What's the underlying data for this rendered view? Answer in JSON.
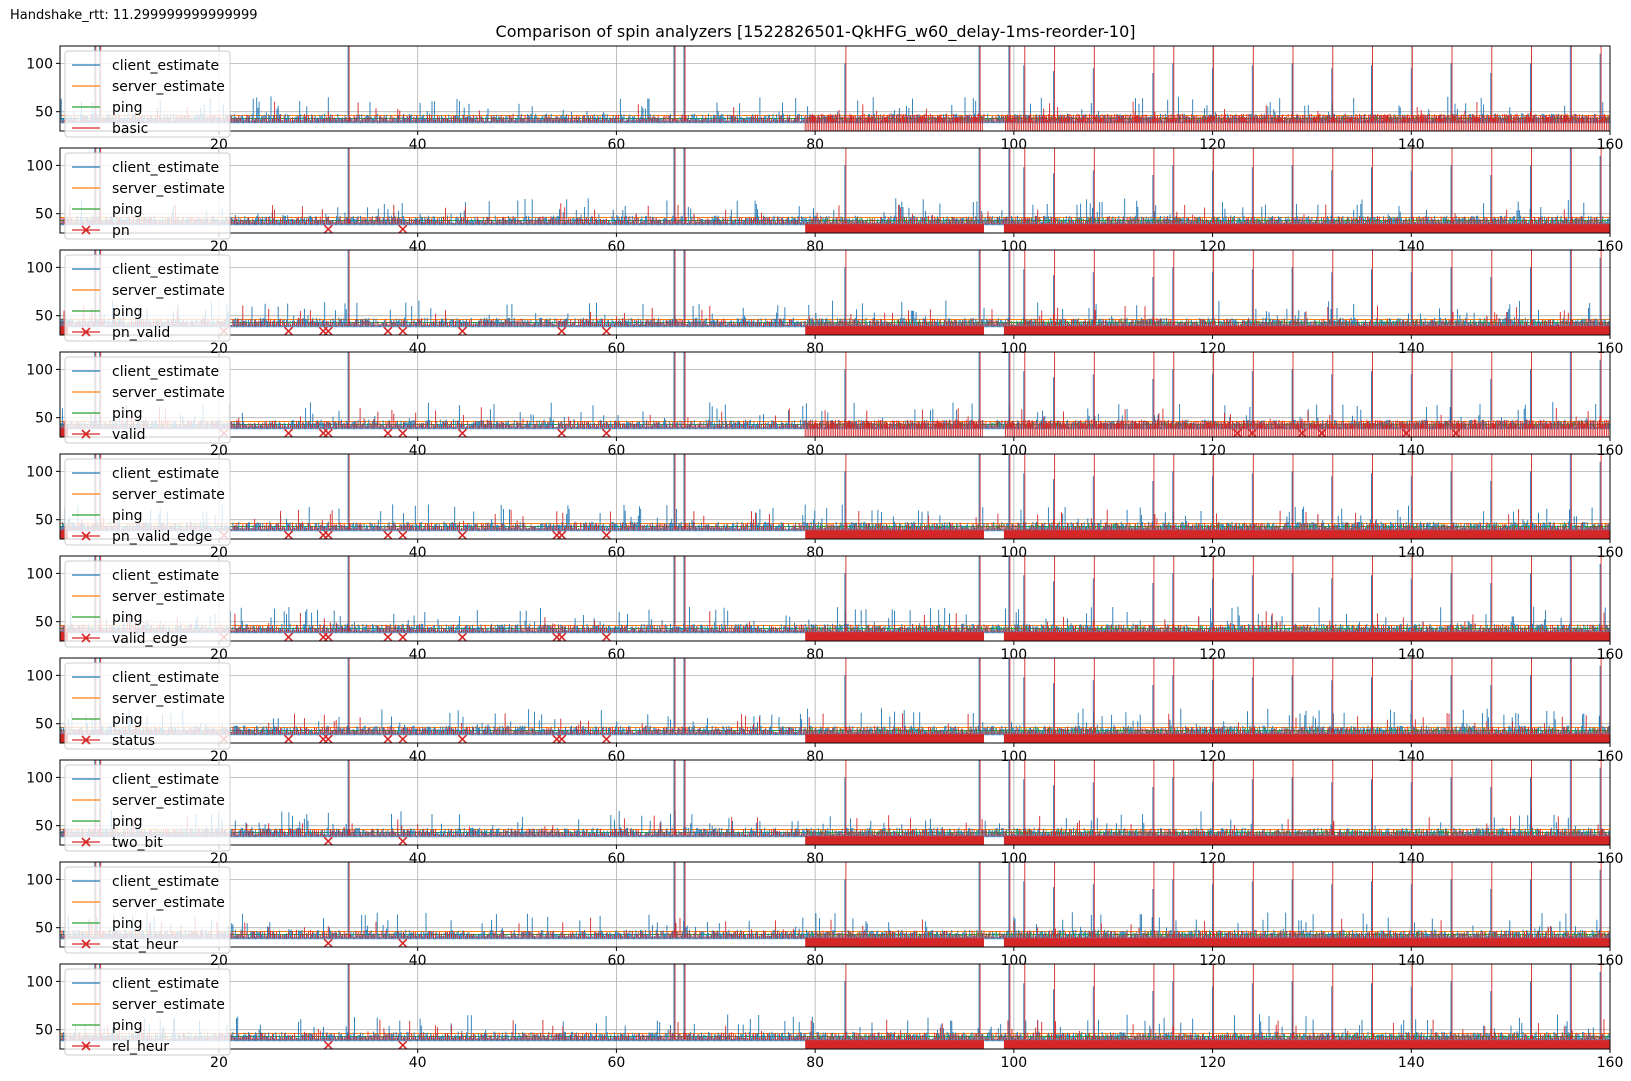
{
  "figure": {
    "annotation": "Handshake_rtt: 11.299999999999999",
    "title": "Comparison of spin analyzers [1522826501-QkHFG_w60_delay-1ms-reorder-10]"
  },
  "colors": {
    "client_estimate": "#1f77b4",
    "server_estimate": "#ff7f0e",
    "ping": "#2ca02c",
    "analyzer": "#d62728",
    "grid": "#b0b0b0"
  },
  "chart_data": {
    "type": "line",
    "shared_x_ticks": [
      20,
      40,
      60,
      80,
      100,
      120,
      140,
      160
    ],
    "shared_y_ticks": [
      50,
      100
    ],
    "xlim": [
      4,
      160
    ],
    "ylim": [
      30,
      118
    ],
    "grid": true,
    "legend_placement": "upper-left",
    "reference_lines": [
      {
        "name": "ping",
        "y": 43
      },
      {
        "name": "server_estimate",
        "y": 46
      }
    ],
    "marker_band_y": 34,
    "marker_gap_x": [
      97,
      99
    ],
    "common_series": [
      "client_estimate",
      "server_estimate",
      "ping"
    ],
    "panels": [
      {
        "analyzer": "basic",
        "marker": "line",
        "cross_x": [],
        "dense_start": 79
      },
      {
        "analyzer": "pn",
        "marker": "x",
        "cross_x": [
          31,
          38.5
        ],
        "dense_start": 79
      },
      {
        "analyzer": "pn_valid",
        "marker": "x",
        "cross_x": [
          20.5,
          27,
          30.5,
          31,
          37,
          38.5,
          44.5,
          54.5,
          59
        ],
        "dense_start": 79
      },
      {
        "analyzer": "valid",
        "marker": "x",
        "cross_x": [
          20.5,
          27,
          30.5,
          31,
          37,
          38.5,
          44.5,
          54.5,
          59,
          122.5,
          124,
          129,
          131,
          139.5,
          144.5
        ],
        "dense_start": 79
      },
      {
        "analyzer": "pn_valid_edge",
        "marker": "x",
        "cross_x": [
          20.5,
          27,
          30.5,
          31,
          37,
          38.5,
          44.5,
          54,
          54.5,
          59
        ],
        "dense_start": 79
      },
      {
        "analyzer": "valid_edge",
        "marker": "x",
        "cross_x": [
          20.5,
          27,
          30.5,
          31,
          37,
          38.5,
          44.5,
          54,
          54.5,
          59
        ],
        "dense_start": 79
      },
      {
        "analyzer": "status",
        "marker": "x",
        "cross_x": [
          20.5,
          27,
          30.5,
          31,
          37,
          38.5,
          44.5,
          54,
          54.5,
          59
        ],
        "dense_start": 79
      },
      {
        "analyzer": "two_bit",
        "marker": "x",
        "cross_x": [
          31,
          38.5
        ],
        "dense_start": 79
      },
      {
        "analyzer": "stat_heur",
        "marker": "x",
        "cross_x": [
          31,
          38.5
        ],
        "dense_start": 79
      },
      {
        "analyzer": "rel_heur",
        "marker": "x",
        "cross_x": [
          31,
          38.5
        ],
        "dense_start": 79
      }
    ],
    "client_spikes": [
      {
        "x": 7.5,
        "y": 118
      },
      {
        "x": 8,
        "y": 118
      },
      {
        "x": 33,
        "y": 118
      },
      {
        "x": 65.8,
        "y": 118
      },
      {
        "x": 66.8,
        "y": 118
      },
      {
        "x": 96.5,
        "y": 118
      },
      {
        "x": 99.5,
        "y": 118
      },
      {
        "x": 83,
        "y": 100
      },
      {
        "x": 101,
        "y": 98
      },
      {
        "x": 104,
        "y": 92
      },
      {
        "x": 108,
        "y": 95
      },
      {
        "x": 114,
        "y": 90
      },
      {
        "x": 116,
        "y": 100
      },
      {
        "x": 120,
        "y": 95
      },
      {
        "x": 124,
        "y": 98
      },
      {
        "x": 128,
        "y": 100
      },
      {
        "x": 132,
        "y": 95
      },
      {
        "x": 136,
        "y": 98
      },
      {
        "x": 140,
        "y": 95
      },
      {
        "x": 144,
        "y": 100
      },
      {
        "x": 148,
        "y": 90
      },
      {
        "x": 152,
        "y": 100
      },
      {
        "x": 156,
        "y": 118
      },
      {
        "x": 159,
        "y": 110
      }
    ]
  }
}
